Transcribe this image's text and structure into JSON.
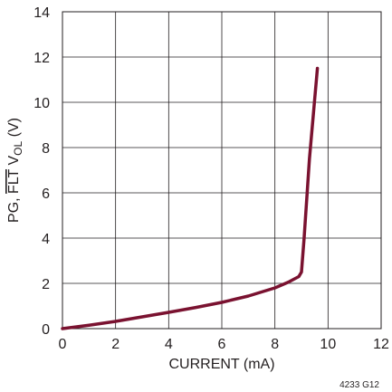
{
  "chart_data": {
    "type": "line",
    "title": "",
    "xlabel": "CURRENT (mA)",
    "ylabel": {
      "prefix": "PG, ",
      "overbar": "FLT",
      "main": " V",
      "subscript": "OL",
      "suffix": " (V)"
    },
    "xlim": [
      0,
      12
    ],
    "ylim": [
      0,
      14
    ],
    "x_ticks": [
      "0",
      "2",
      "4",
      "6",
      "8",
      "10",
      "12"
    ],
    "y_ticks": [
      "0",
      "2",
      "4",
      "6",
      "8",
      "10",
      "12",
      "14"
    ],
    "grid": true,
    "figure_id": "4233 G12",
    "line_color": "#7a1230",
    "series": [
      {
        "x": [
          0,
          1,
          2,
          3,
          4,
          5,
          6,
          7,
          8,
          8.5,
          8.9,
          9.0,
          9.1,
          9.3,
          9.6
        ],
        "y": [
          0,
          0.15,
          0.32,
          0.52,
          0.72,
          0.93,
          1.16,
          1.44,
          1.8,
          2.05,
          2.3,
          2.5,
          4.0,
          7.5,
          11.5
        ]
      }
    ]
  }
}
